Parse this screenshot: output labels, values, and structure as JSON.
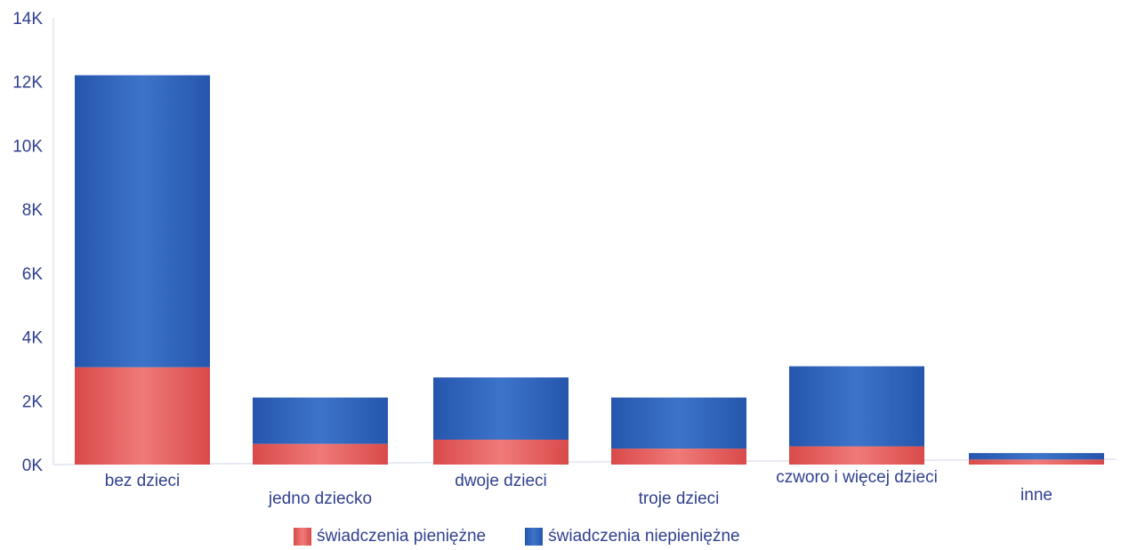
{
  "chart_data": {
    "type": "bar",
    "stacked": true,
    "categories": [
      "bez dzieci",
      "jedno dziecko",
      "dwoje dzieci",
      "troje dzieci",
      "czworo i więcej dzieci",
      "inne"
    ],
    "series": [
      {
        "name": "świadczenia pieniężne",
        "color": "#e05a5a",
        "values": [
          3050,
          650,
          780,
          500,
          570,
          160
        ]
      },
      {
        "name": "świadczenia niepieniężne",
        "color": "#2f63b8",
        "values": [
          9150,
          1450,
          1950,
          1600,
          2510,
          200
        ]
      }
    ],
    "ylim": [
      0,
      14000
    ],
    "yticks": [
      {
        "value": 0,
        "label": "0K"
      },
      {
        "value": 2000,
        "label": "2K"
      },
      {
        "value": 4000,
        "label": "4K"
      },
      {
        "value": 6000,
        "label": "6K"
      },
      {
        "value": 8000,
        "label": "8K"
      },
      {
        "value": 10000,
        "label": "10K"
      },
      {
        "value": 12000,
        "label": "12K"
      },
      {
        "value": 14000,
        "label": "14K"
      }
    ],
    "legend_position": "bottom",
    "grid": false
  }
}
